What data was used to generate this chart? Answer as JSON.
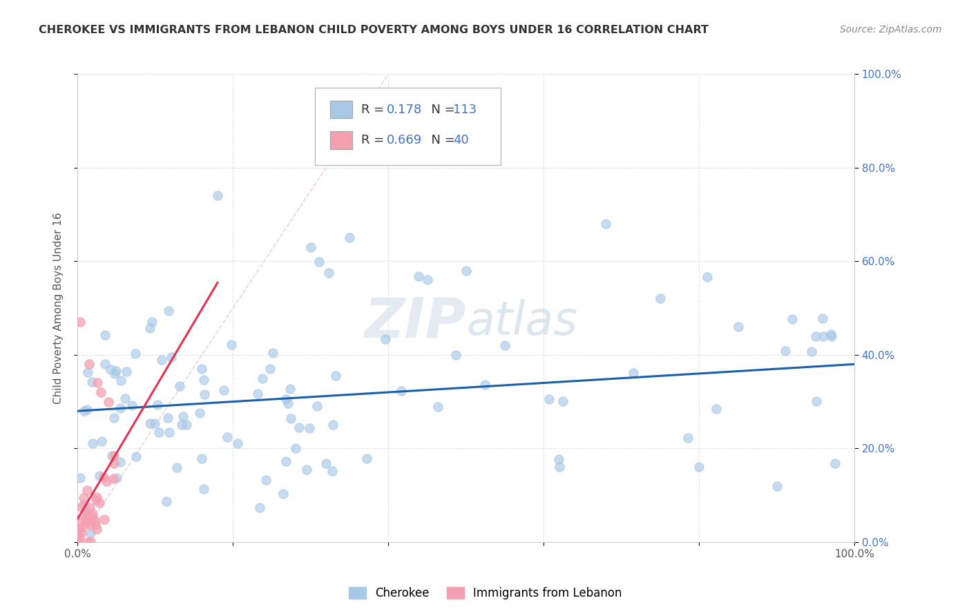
{
  "title": "CHEROKEE VS IMMIGRANTS FROM LEBANON CHILD POVERTY AMONG BOYS UNDER 16 CORRELATION CHART",
  "source": "Source: ZipAtlas.com",
  "ylabel": "Child Poverty Among Boys Under 16",
  "r_cherokee": 0.178,
  "n_cherokee": 113,
  "r_lebanon": 0.669,
  "n_lebanon": 40,
  "legend_labels": [
    "Cherokee",
    "Immigrants from Lebanon"
  ],
  "cherokee_color": "#a8c8e8",
  "lebanon_color": "#f4a0b0",
  "cherokee_line_color": "#1a5fa8",
  "lebanon_line_color": "#e83050",
  "diag_line_color": "#e0b0b8",
  "background_color": "#ffffff",
  "grid_color": "#dddddd",
  "right_tick_color": "#4472c4",
  "title_color": "#333333",
  "source_color": "#888888"
}
